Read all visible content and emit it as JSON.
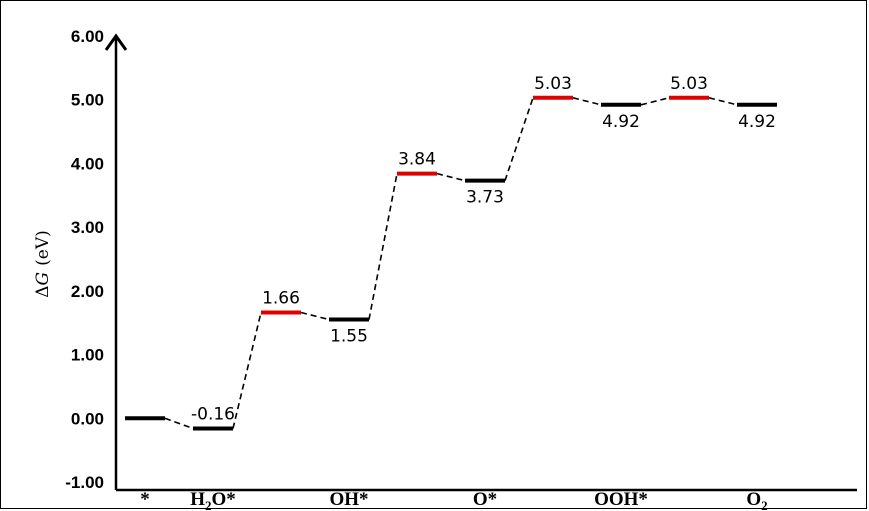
{
  "chart_data": {
    "type": "line",
    "title": "",
    "xlabel": "",
    "ylabel": "ΔG (eV)",
    "ylabel_symbol": "Δ",
    "ylabel_var": "G",
    "ylabel_unit": "(eV)",
    "ylim": [
      -1.0,
      6.0
    ],
    "yticks": [
      "6.00",
      "5.00",
      "4.00",
      "3.00",
      "2.00",
      "1.00",
      "0.00",
      "-1.00"
    ],
    "ytick_values": [
      6,
      5,
      4,
      3,
      2,
      1,
      0,
      -1
    ],
    "grid": false,
    "categories": [
      {
        "label": "*",
        "base": "*",
        "sub": "",
        "tail": ""
      },
      {
        "label": "H2O*",
        "base": "H",
        "sub": "2",
        "tail": "O*"
      },
      {
        "label": "OH*",
        "base": "OH*",
        "sub": "",
        "tail": ""
      },
      {
        "label": "O*",
        "base": "O*",
        "sub": "",
        "tail": ""
      },
      {
        "label": "OOH*",
        "base": "OOH*",
        "sub": "",
        "tail": ""
      },
      {
        "label": "O2",
        "base": "O",
        "sub": "2",
        "tail": ""
      }
    ],
    "levels": [
      {
        "value": 0.0,
        "label": "",
        "kind": "intermediate",
        "category": "*"
      },
      {
        "value": -0.16,
        "label": "-0.16",
        "kind": "intermediate",
        "category": "H2O*",
        "label_pos": "above"
      },
      {
        "value": 1.66,
        "label": "1.66",
        "kind": "transition",
        "category": "",
        "label_pos": "above"
      },
      {
        "value": 1.55,
        "label": "1.55",
        "kind": "intermediate",
        "category": "OH*",
        "label_pos": "below"
      },
      {
        "value": 3.84,
        "label": "3.84",
        "kind": "transition",
        "category": "",
        "label_pos": "above"
      },
      {
        "value": 3.73,
        "label": "3.73",
        "kind": "intermediate",
        "category": "O*",
        "label_pos": "below"
      },
      {
        "value": 5.03,
        "label": "5.03",
        "kind": "transition",
        "category": "",
        "label_pos": "above"
      },
      {
        "value": 4.92,
        "label": "4.92",
        "kind": "intermediate",
        "category": "OOH*",
        "label_pos": "below"
      },
      {
        "value": 5.03,
        "label": "5.03",
        "kind": "transition",
        "category": "",
        "label_pos": "above"
      },
      {
        "value": 4.92,
        "label": "4.92",
        "kind": "intermediate",
        "category": "O2",
        "label_pos": "below"
      }
    ],
    "colors": {
      "intermediate": "#000000",
      "transition": "#e00000",
      "connector": "#000000",
      "axis": "#000000"
    }
  }
}
